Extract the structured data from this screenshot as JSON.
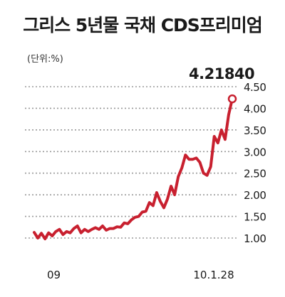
{
  "chart_data": {
    "type": "line",
    "title": "그리스 5년물 국채 CDS프리미엄",
    "unit_label": "(단위:%)",
    "peak_annotation": "4.21840",
    "x_tick_labels": [
      "09",
      "10.1.28"
    ],
    "y_tick_labels": [
      "4.50",
      "4.00",
      "3.50",
      "3.00",
      "2.50",
      "2.00",
      "1.50",
      "1.00"
    ],
    "ylim": [
      1.0,
      4.5
    ],
    "y_ticks": [
      4.5,
      4.0,
      3.5,
      3.0,
      2.5,
      2.0,
      1.5,
      1.0
    ],
    "grid": true,
    "line_color": "#c8202f",
    "series": [
      {
        "values": [
          1.13,
          1.0,
          1.11,
          0.98,
          1.12,
          1.05,
          1.15,
          1.2,
          1.08,
          1.15,
          1.12,
          1.22,
          1.28,
          1.12,
          1.2,
          1.15,
          1.2,
          1.24,
          1.2,
          1.28,
          1.18,
          1.22,
          1.22,
          1.26,
          1.25,
          1.35,
          1.33,
          1.42,
          1.48,
          1.5,
          1.6,
          1.62,
          1.82,
          1.75,
          2.05,
          1.85,
          1.7,
          1.9,
          2.2,
          2.0,
          2.42,
          2.62,
          2.92,
          2.82,
          2.82,
          2.85,
          2.75,
          2.5,
          2.45,
          2.65,
          3.35,
          3.2,
          3.5,
          3.28,
          3.85,
          4.2184
        ]
      }
    ]
  }
}
